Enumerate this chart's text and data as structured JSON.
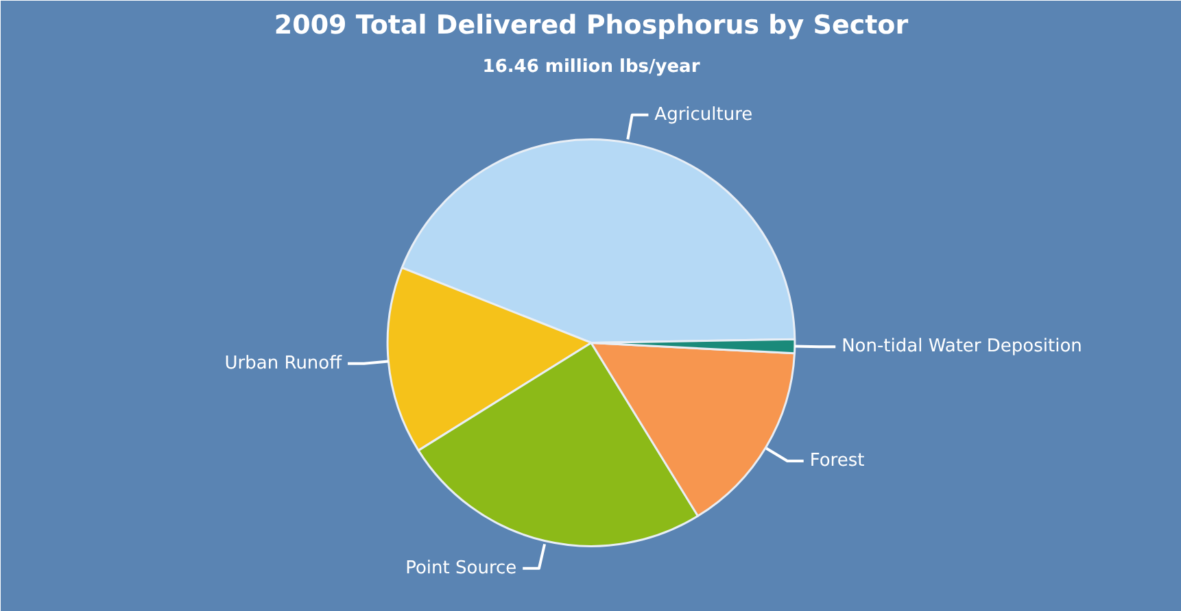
{
  "chart_data": {
    "type": "pie",
    "title": "2009 Total Delivered Phosphorus by Sector",
    "subtitle": "16.46 million lbs/year",
    "categories": [
      "Agriculture",
      "Urban Runoff",
      "Point Source",
      "Forest",
      "Non-tidal Water Deposition"
    ],
    "values": [
      43.7,
      14.9,
      24.9,
      15.4,
      1.1
    ],
    "colors": [
      "#b5d9f5",
      "#f5c21a",
      "#8cba18",
      "#f7964f",
      "#1a8a7a"
    ]
  }
}
